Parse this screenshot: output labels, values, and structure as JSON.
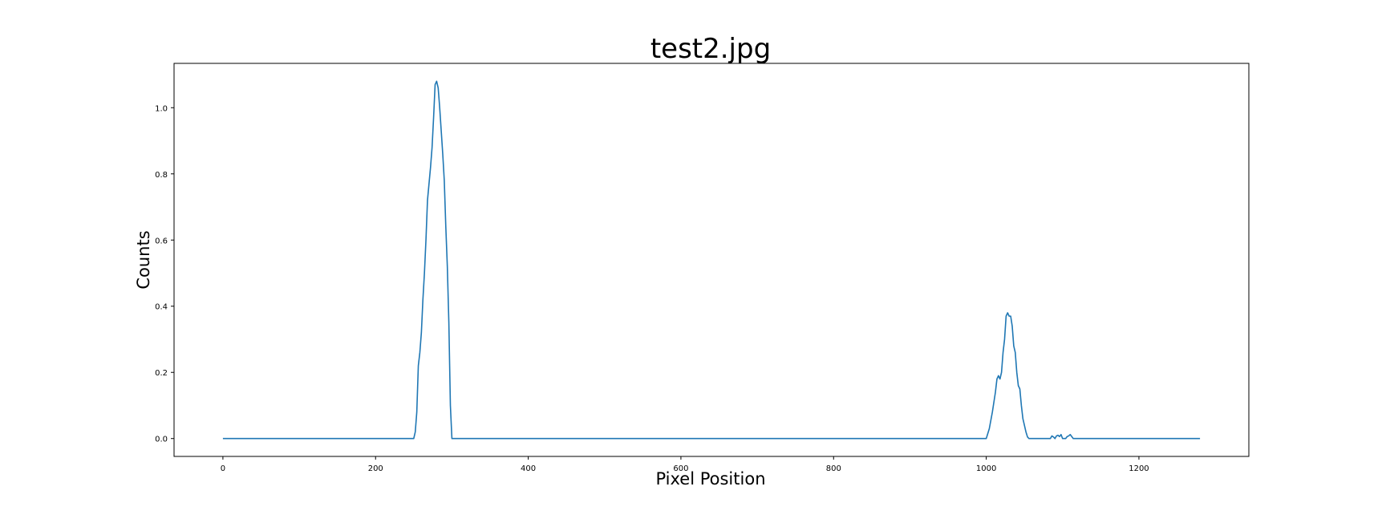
{
  "figure": {
    "title": "test2.jpg",
    "xlabel": "Pixel Position",
    "ylabel": "Counts"
  },
  "colors": {
    "line": "#1f77b4",
    "axes": "#000000",
    "background": "#ffffff"
  },
  "chart_data": {
    "type": "line",
    "title": "test2.jpg",
    "xlabel": "Pixel Position",
    "ylabel": "Counts",
    "xlim": [
      -64,
      1344
    ],
    "ylim": [
      -0.054,
      1.134
    ],
    "xticks": [
      0,
      200,
      400,
      600,
      800,
      1000,
      1200
    ],
    "xtick_labels": [
      "0",
      "200",
      "400",
      "600",
      "800",
      "1000",
      "1200"
    ],
    "yticks": [
      0.0,
      0.2,
      0.4,
      0.6,
      0.8,
      1.0
    ],
    "ytick_labels": [
      "0.0",
      "0.2",
      "0.4",
      "0.6",
      "0.8",
      "1.0"
    ],
    "grid": false,
    "series": [
      {
        "x": [
          0,
          250,
          252,
          254,
          256,
          258,
          260,
          262,
          264,
          266,
          268,
          270,
          272,
          274,
          276,
          278,
          280,
          282,
          284,
          286,
          288,
          290,
          292,
          294,
          296,
          298,
          300,
          302,
          304,
          306,
          308,
          310,
          312,
          400,
          600,
          800,
          1000,
          1004,
          1008,
          1012,
          1014,
          1016,
          1018,
          1020,
          1022,
          1024,
          1026,
          1028,
          1030,
          1032,
          1034,
          1036,
          1038,
          1040,
          1042,
          1044,
          1046,
          1048,
          1050,
          1052,
          1054,
          1056,
          1058,
          1060,
          1062,
          1066,
          1070,
          1076,
          1080,
          1084,
          1086,
          1088,
          1090,
          1092,
          1094,
          1096,
          1098,
          1100,
          1102,
          1104,
          1106,
          1108,
          1110,
          1112,
          1114,
          1116,
          1200,
          1280
        ],
        "y": [
          0.0,
          0.0,
          0.02,
          0.08,
          0.22,
          0.26,
          0.32,
          0.42,
          0.5,
          0.6,
          0.72,
          0.77,
          0.82,
          0.88,
          0.97,
          1.07,
          1.08,
          1.06,
          1.0,
          0.93,
          0.86,
          0.78,
          0.64,
          0.52,
          0.35,
          0.1,
          0.0,
          0.0,
          0.0,
          0.0,
          0.0,
          0.0,
          0.0,
          0.0,
          0.0,
          0.0,
          0.0,
          0.03,
          0.08,
          0.14,
          0.18,
          0.19,
          0.18,
          0.2,
          0.26,
          0.3,
          0.37,
          0.38,
          0.37,
          0.37,
          0.34,
          0.28,
          0.26,
          0.2,
          0.16,
          0.15,
          0.1,
          0.06,
          0.04,
          0.02,
          0.005,
          0.0,
          0.0,
          0.0,
          0.0,
          0.0,
          0.0,
          0.0,
          0.0,
          0.0,
          0.008,
          0.005,
          0.0,
          0.008,
          0.01,
          0.006,
          0.012,
          0.0,
          0.0,
          0.0,
          0.006,
          0.008,
          0.012,
          0.006,
          0.0,
          0.0,
          0.0,
          0.0
        ]
      }
    ]
  }
}
